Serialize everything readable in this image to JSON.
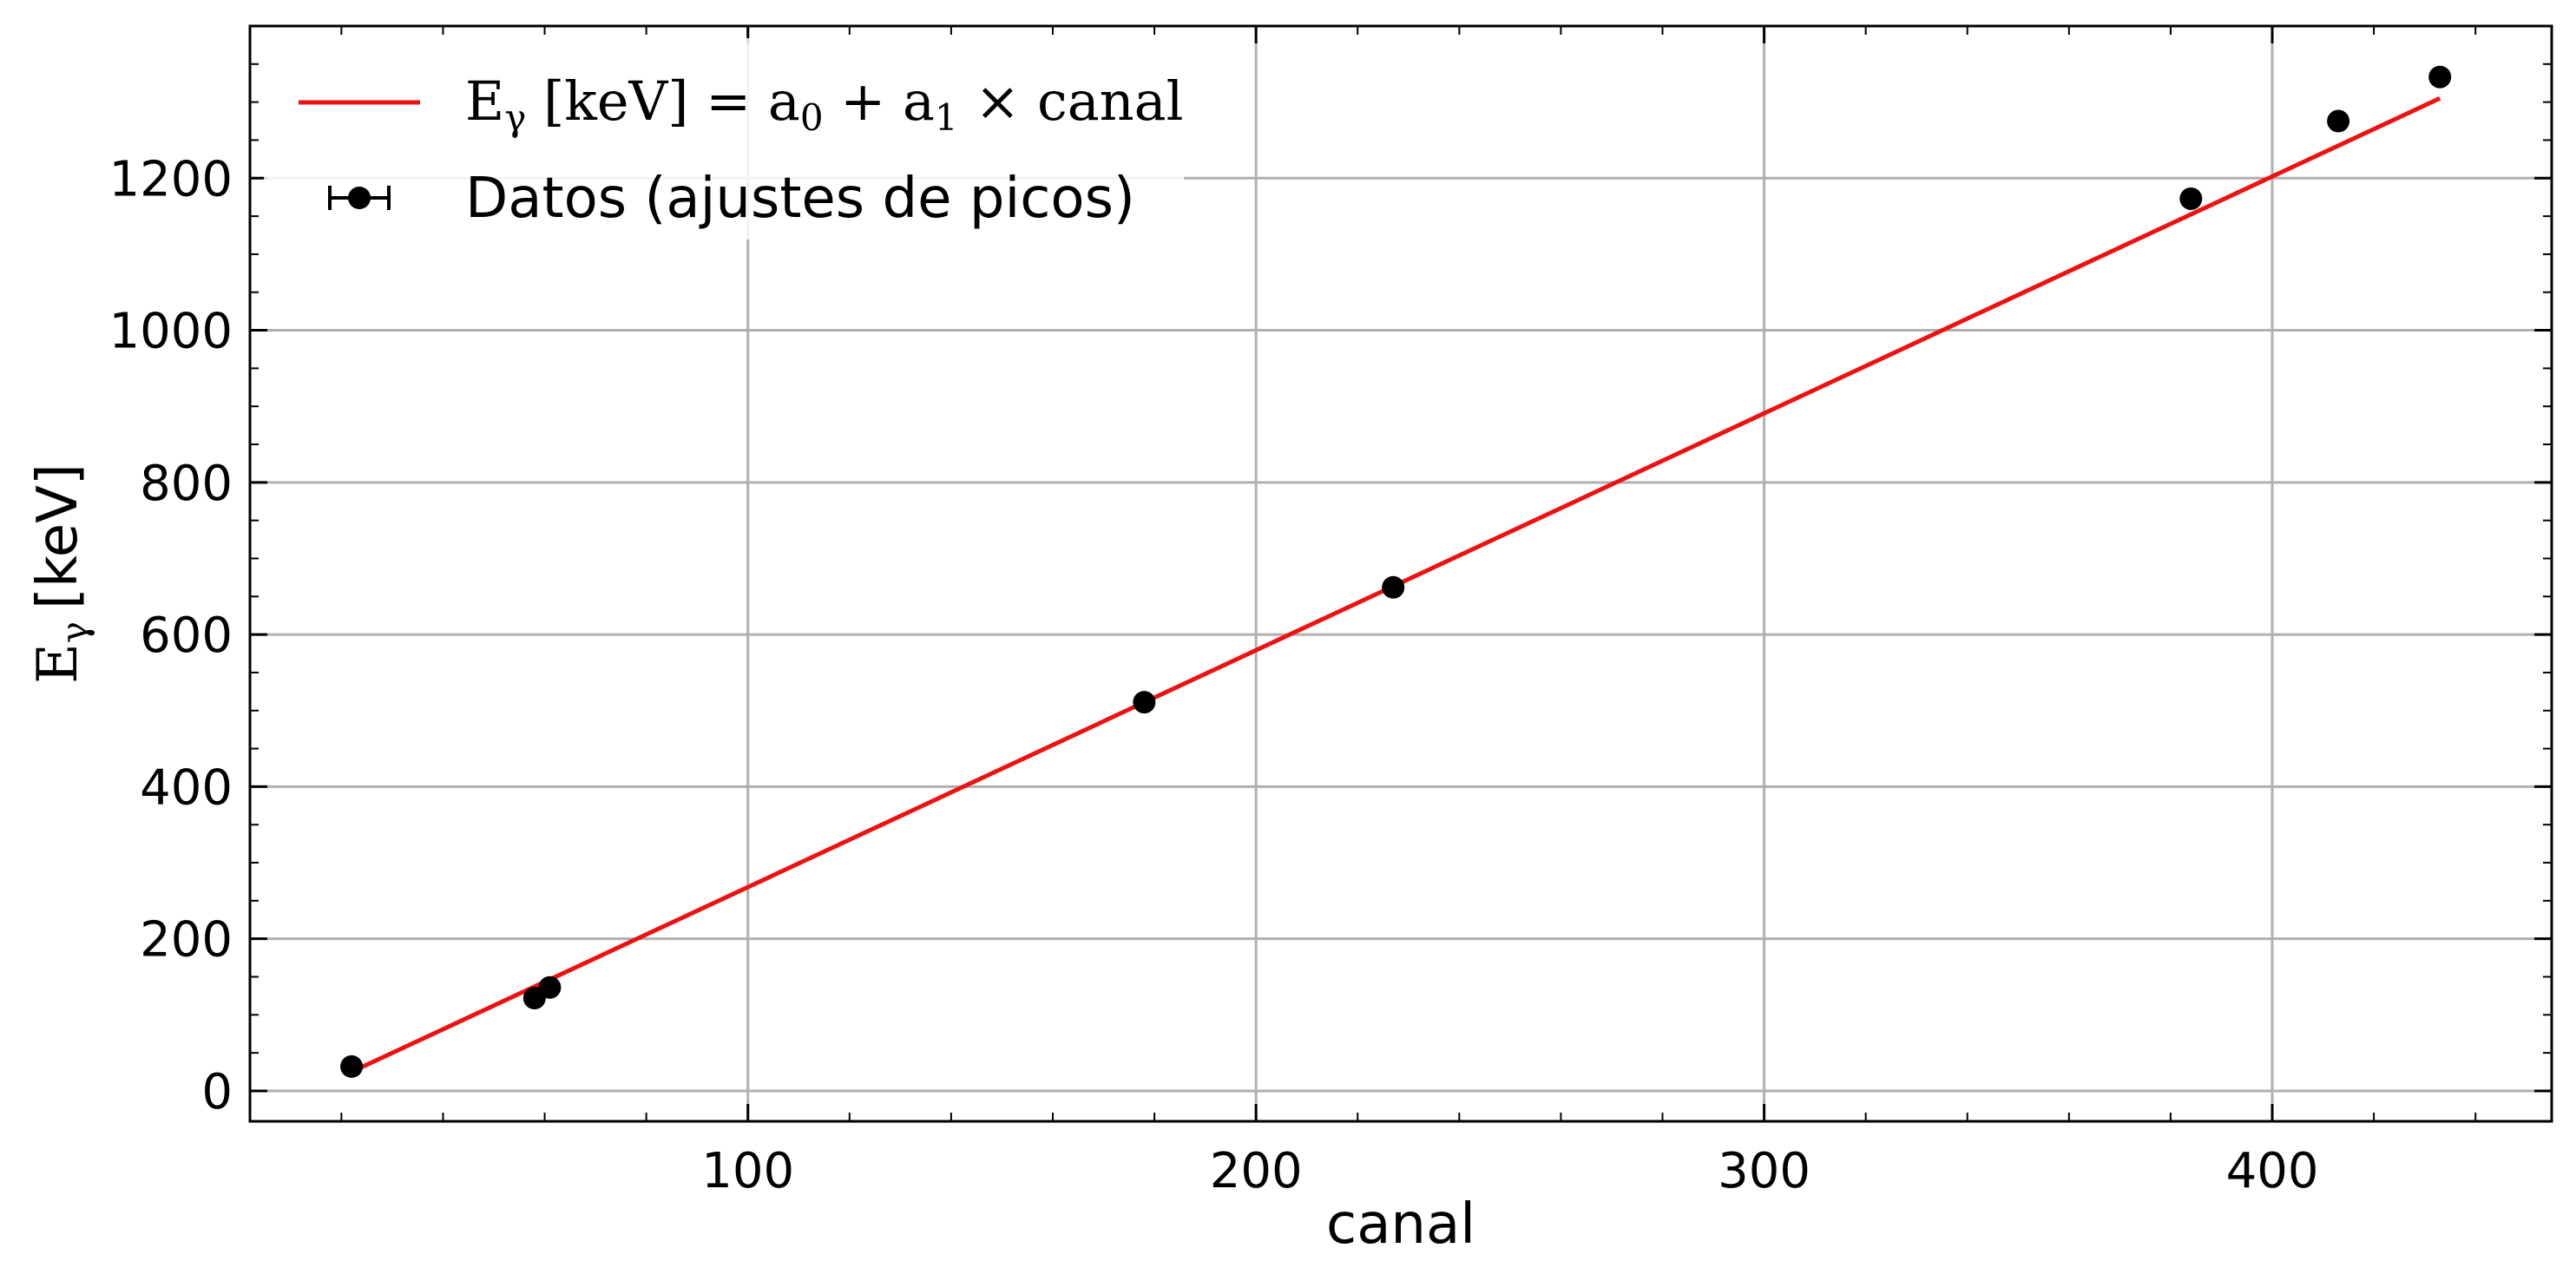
{
  "chart_data": {
    "type": "scatter",
    "xlabel": "canal",
    "ylabel": {
      "base": "E",
      "sub": "γ",
      "unit": "[keV]"
    },
    "xlim": [
      2,
      455
    ],
    "ylim": [
      -40,
      1400
    ],
    "xticks": [
      100,
      200,
      300,
      400
    ],
    "yticks": [
      0,
      200,
      400,
      600,
      800,
      1000,
      1200
    ],
    "x_minor_step": 20,
    "y_minor_step": 50,
    "grid": true,
    "legend_position": "top-left",
    "series": [
      {
        "name": "Datos (ajustes de picos)",
        "kind": "points",
        "color": "#000000",
        "x": [
          22,
          58,
          61,
          178,
          227,
          384,
          413,
          433
        ],
        "y": [
          32,
          122,
          136,
          511,
          662,
          1173,
          1275,
          1333
        ]
      },
      {
        "name": "E_γ [keV] = a_0 + a_1 × canal",
        "kind": "line",
        "color": "#ee1111",
        "x": [
          22,
          433
        ],
        "y": [
          25,
          1305
        ]
      }
    ],
    "legend": {
      "fit": {
        "lhs": "E",
        "sub": "γ",
        "unit": " [keV]",
        "eq": " = a",
        "a0sub": "0",
        "plus": " + a",
        "a1sub": "1",
        "rest": " × canal"
      },
      "data": "Datos (ajustes de picos)"
    }
  }
}
